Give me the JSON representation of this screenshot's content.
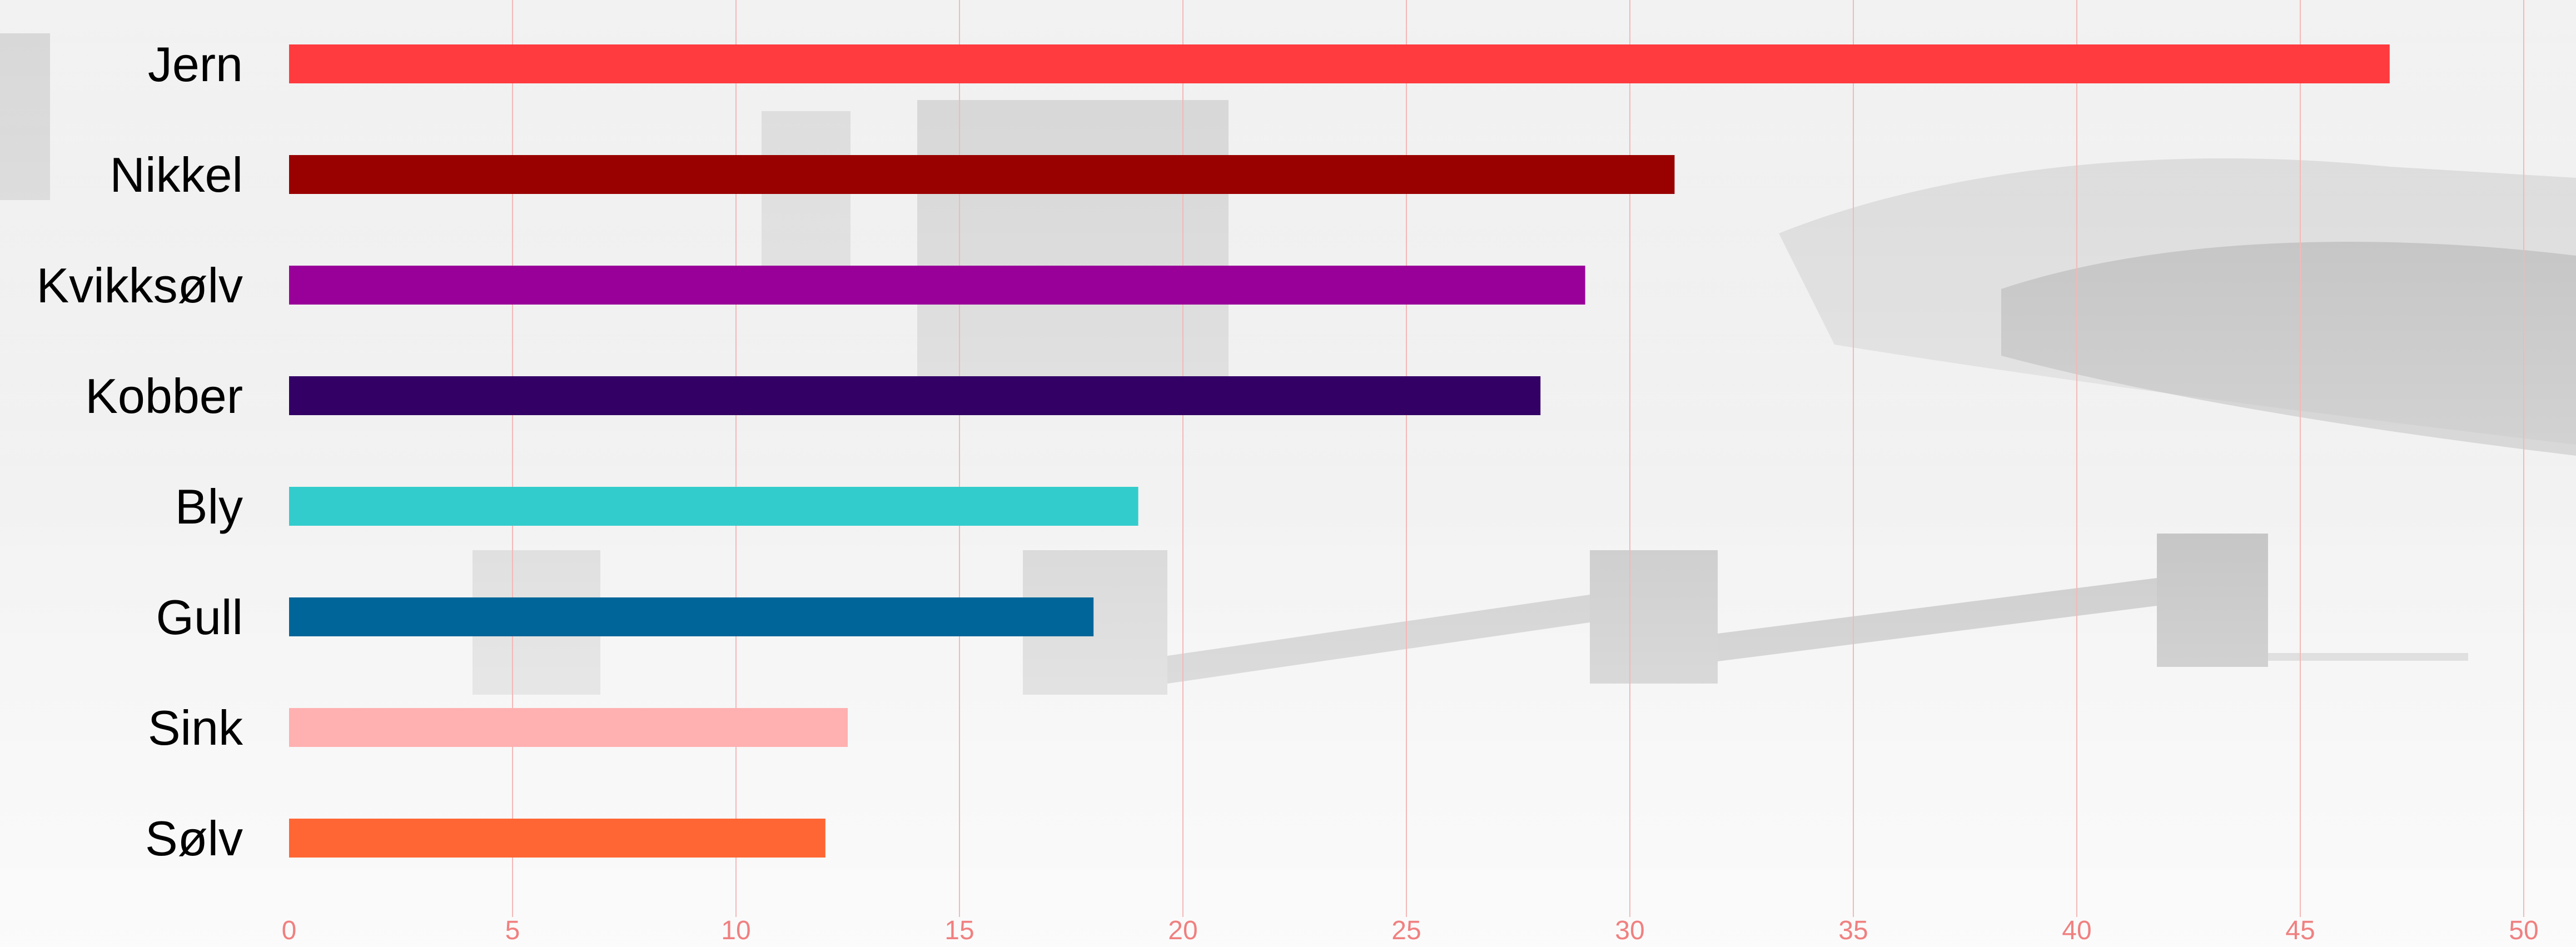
{
  "chart_data": {
    "type": "bar",
    "orientation": "horizontal",
    "categories": [
      "Jern",
      "Nikkel",
      "Kvikksølv",
      "Kobber",
      "Bly",
      "Gull",
      "Sink",
      "Sølv"
    ],
    "values": [
      47,
      31,
      29,
      28,
      19,
      18,
      12.5,
      12
    ],
    "colors": [
      "#ff3b3f",
      "#990000",
      "#990099",
      "#330066",
      "#33cccc",
      "#006699",
      "#ffb0b0",
      "#ff6633"
    ],
    "xlim": [
      0,
      50
    ],
    "xticks": [
      0,
      5,
      10,
      15,
      20,
      25,
      30,
      35,
      40,
      45,
      50
    ],
    "grid": "vertical",
    "title": "",
    "xlabel": "",
    "ylabel": ""
  }
}
